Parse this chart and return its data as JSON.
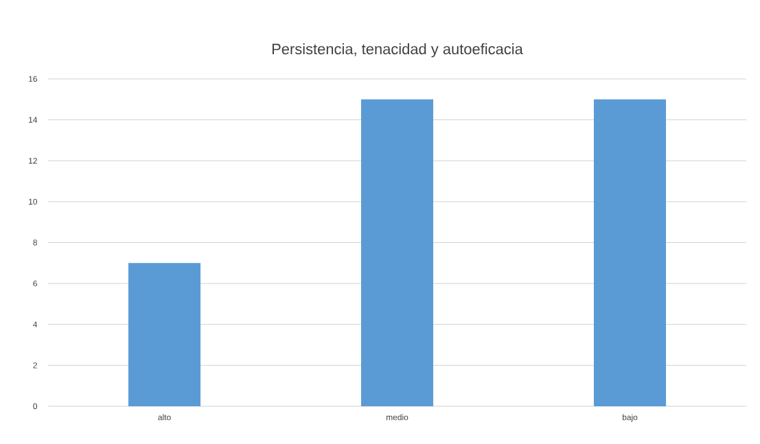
{
  "chart_data": {
    "type": "bar",
    "title": "Persistencia, tenacidad y autoeficacia",
    "categories": [
      "alto",
      "medio",
      "bajo"
    ],
    "values": [
      7,
      15,
      15
    ],
    "color": "#5b9bd5",
    "ylim": [
      0,
      16
    ],
    "yticks": [
      0,
      2,
      4,
      6,
      8,
      10,
      12,
      14,
      16
    ],
    "grid": "y",
    "legend": false
  }
}
